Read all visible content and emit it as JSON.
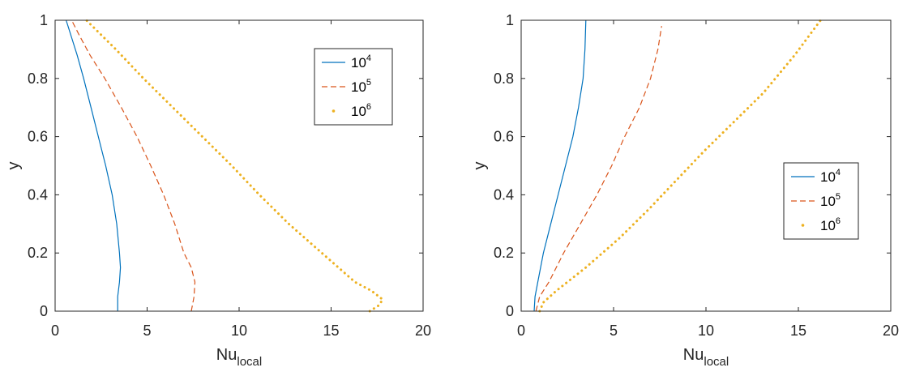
{
  "chart_data": [
    {
      "type": "line",
      "xlabel": "Nu",
      "xlabel_sub": "local",
      "ylabel": "y",
      "xlim": [
        0,
        20
      ],
      "ylim": [
        0,
        1
      ],
      "xticks": [
        "0",
        "5",
        "10",
        "15",
        "20"
      ],
      "yticks": [
        "0",
        "0.2",
        "0.4",
        "0.6",
        "0.8",
        "1"
      ],
      "legend_position": "top-right",
      "series": [
        {
          "name": "10",
          "name_sup": "4",
          "style": "solid",
          "color": "#0072BD",
          "x": [
            3.4,
            3.4,
            3.5,
            3.55,
            3.5,
            3.35,
            3.1,
            2.75,
            2.35,
            1.95,
            1.55,
            1.2,
            0.9,
            0.7,
            0.6
          ],
          "y": [
            0.0,
            0.05,
            0.1,
            0.15,
            0.2,
            0.3,
            0.4,
            0.5,
            0.6,
            0.7,
            0.8,
            0.88,
            0.94,
            0.98,
            1.0
          ]
        },
        {
          "name": "10",
          "name_sup": "5",
          "style": "dashed",
          "color": "#D95319",
          "x": [
            7.4,
            7.55,
            7.6,
            7.4,
            7.0,
            6.5,
            5.9,
            5.2,
            4.45,
            3.6,
            2.7,
            1.9,
            1.3,
            0.9
          ],
          "y": [
            0.0,
            0.05,
            0.1,
            0.15,
            0.2,
            0.3,
            0.4,
            0.5,
            0.6,
            0.7,
            0.8,
            0.88,
            0.95,
            1.0
          ]
        },
        {
          "name": "10",
          "name_sup": "6",
          "style": "dotted",
          "color": "#EDB120",
          "x": [
            17.1,
            17.6,
            17.8,
            17.2,
            16.3,
            14.5,
            12.7,
            11.1,
            9.6,
            8.0,
            6.4,
            4.8,
            3.3,
            1.7
          ],
          "y": [
            0.0,
            0.02,
            0.04,
            0.07,
            0.1,
            0.2,
            0.3,
            0.4,
            0.5,
            0.6,
            0.7,
            0.8,
            0.9,
            1.0
          ]
        }
      ]
    },
    {
      "type": "line",
      "xlabel": "Nu",
      "xlabel_sub": "local",
      "ylabel": "y",
      "xlim": [
        0,
        20
      ],
      "ylim": [
        0,
        1
      ],
      "xticks": [
        "0",
        "5",
        "10",
        "15",
        "20"
      ],
      "yticks": [
        "0",
        "0.2",
        "0.4",
        "0.6",
        "0.8",
        "1"
      ],
      "legend_position": "right",
      "series": [
        {
          "name": "10",
          "name_sup": "4",
          "style": "solid",
          "color": "#0072BD",
          "x": [
            0.7,
            0.75,
            0.9,
            1.2,
            1.6,
            2.0,
            2.4,
            2.8,
            3.1,
            3.35,
            3.45,
            3.5
          ],
          "y": [
            0.0,
            0.05,
            0.1,
            0.2,
            0.3,
            0.4,
            0.5,
            0.6,
            0.7,
            0.8,
            0.9,
            1.0
          ]
        },
        {
          "name": "10",
          "name_sup": "5",
          "style": "dashed",
          "color": "#D95319",
          "x": [
            0.8,
            1.0,
            1.5,
            2.3,
            3.2,
            4.1,
            4.9,
            5.6,
            6.4,
            7.0,
            7.4,
            7.6
          ],
          "y": [
            0.0,
            0.05,
            0.1,
            0.2,
            0.3,
            0.4,
            0.5,
            0.6,
            0.7,
            0.8,
            0.9,
            0.98
          ]
        },
        {
          "name": "10",
          "name_sup": "6",
          "style": "dotted",
          "color": "#EDB120",
          "x": [
            1.0,
            1.2,
            1.9,
            3.5,
            5.3,
            6.9,
            8.4,
            9.9,
            11.5,
            13.1,
            14.8,
            16.2
          ],
          "y": [
            0.0,
            0.03,
            0.07,
            0.15,
            0.25,
            0.35,
            0.45,
            0.55,
            0.65,
            0.75,
            0.88,
            1.0
          ]
        }
      ]
    }
  ]
}
